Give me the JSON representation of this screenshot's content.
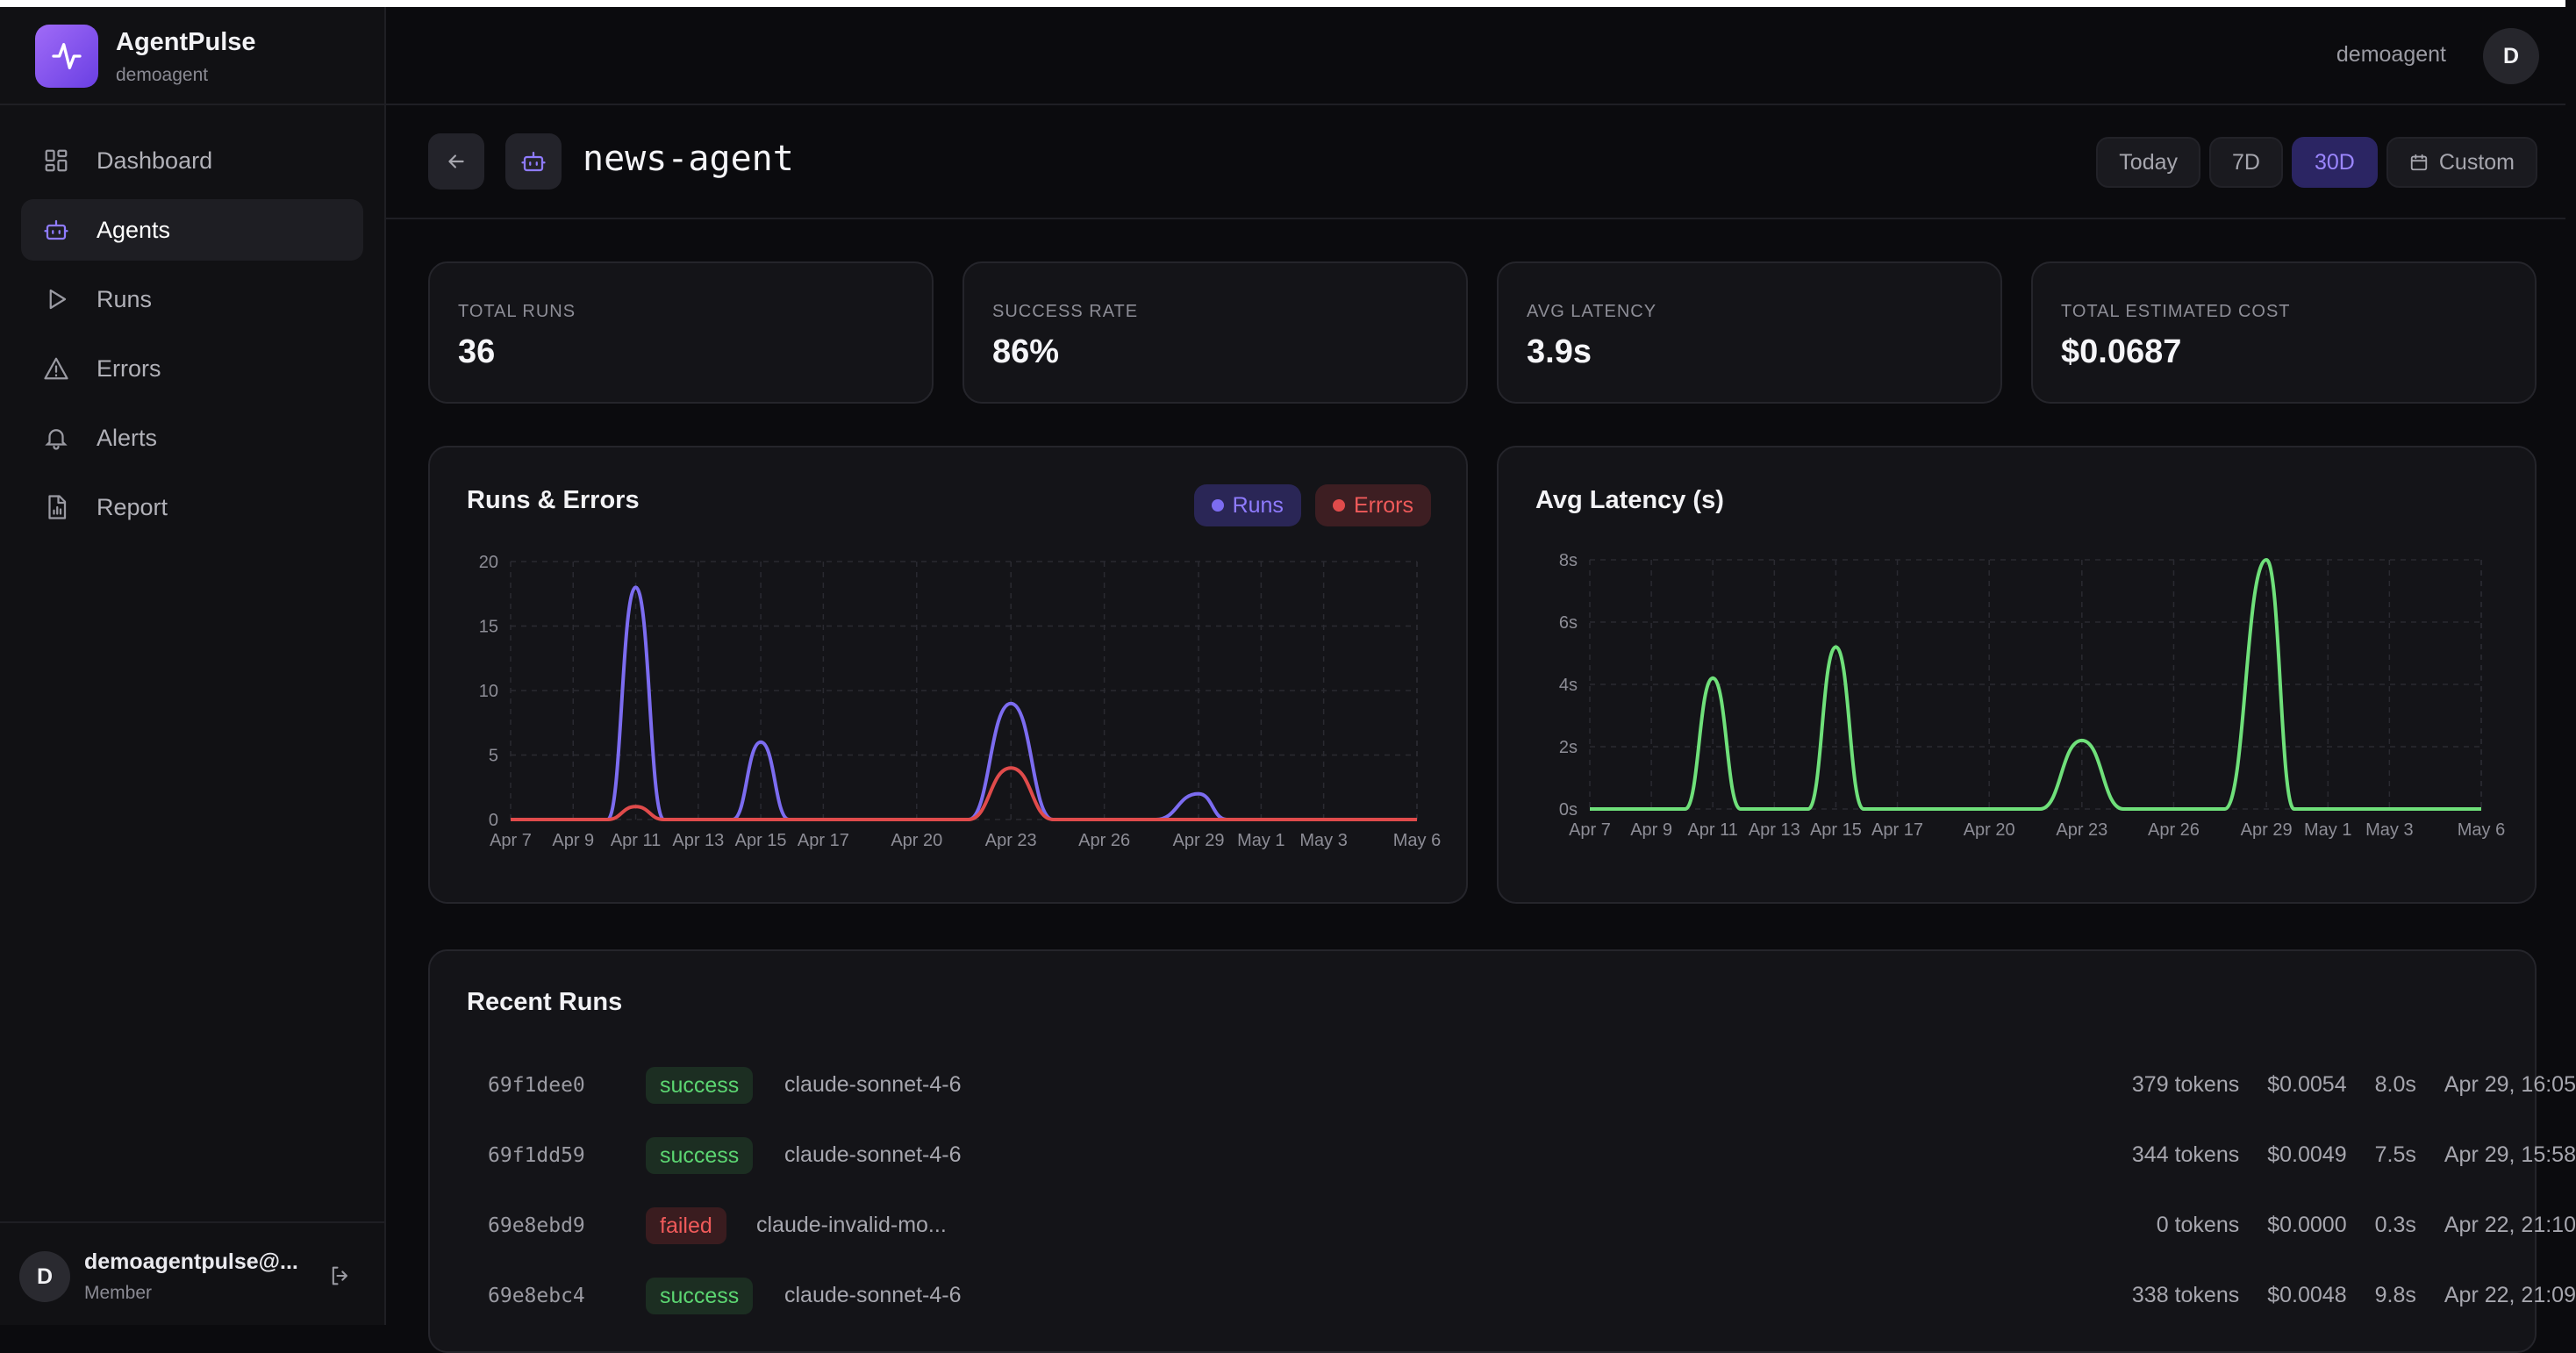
{
  "app": {
    "name": "AgentPulse",
    "workspace": "demoagent"
  },
  "sidebar": {
    "items": [
      {
        "label": "Dashboard",
        "icon": "dashboard-icon",
        "active": false
      },
      {
        "label": "Agents",
        "icon": "bot-icon",
        "active": true
      },
      {
        "label": "Runs",
        "icon": "play-icon",
        "active": false
      },
      {
        "label": "Errors",
        "icon": "warning-icon",
        "active": false
      },
      {
        "label": "Alerts",
        "icon": "bell-icon",
        "active": false
      },
      {
        "label": "Report",
        "icon": "report-icon",
        "active": false
      }
    ],
    "user": {
      "initial": "D",
      "name": "demoagentpulse@...",
      "role": "Member"
    }
  },
  "header": {
    "username": "demoagent",
    "initial": "D"
  },
  "agent": {
    "name": "news-agent"
  },
  "range": {
    "options": [
      "Today",
      "7D",
      "30D",
      "Custom"
    ],
    "selected": "30D"
  },
  "stats": [
    {
      "label": "TOTAL RUNS",
      "value": "36"
    },
    {
      "label": "SUCCESS RATE",
      "value": "86%"
    },
    {
      "label": "AVG LATENCY",
      "value": "3.9s"
    },
    {
      "label": "TOTAL ESTIMATED COST",
      "value": "$0.0687"
    }
  ],
  "colors": {
    "accent": "#8f7bff",
    "runs": "#7c6cf0",
    "errors": "#e04b4b",
    "latency": "#6fe07a"
  },
  "chart_data": [
    {
      "type": "area",
      "title": "Runs & Errors",
      "x": [
        "Apr 7",
        "Apr 9",
        "Apr 11",
        "Apr 13",
        "Apr 15",
        "Apr 17",
        "Apr 20",
        "Apr 23",
        "Apr 26",
        "Apr 29",
        "May 1",
        "May 3",
        "May 6"
      ],
      "ylim": [
        0,
        20
      ],
      "yticks": [
        0,
        5,
        10,
        15,
        20
      ],
      "series": [
        {
          "name": "Runs",
          "values": [
            0,
            0,
            18,
            0,
            6,
            0,
            0,
            9,
            0,
            2,
            0,
            0,
            0
          ]
        },
        {
          "name": "Errors",
          "values": [
            0,
            0,
            1,
            0,
            0,
            0,
            0,
            4,
            0,
            0,
            0,
            0,
            0
          ]
        }
      ],
      "grid": true,
      "legend": "top-right"
    },
    {
      "type": "line",
      "title": "Avg Latency (s)",
      "x": [
        "Apr 7",
        "Apr 9",
        "Apr 11",
        "Apr 13",
        "Apr 15",
        "Apr 17",
        "Apr 20",
        "Apr 23",
        "Apr 26",
        "Apr 29",
        "May 1",
        "May 3",
        "May 6"
      ],
      "ylim": [
        0,
        8
      ],
      "yticks": [
        "0s",
        "2s",
        "4s",
        "6s",
        "8s"
      ],
      "series": [
        {
          "values": [
            0,
            0,
            4.2,
            0,
            5.2,
            0,
            0,
            2.2,
            0,
            8.0,
            0,
            0,
            0
          ]
        }
      ],
      "grid": true
    }
  ],
  "recent_runs": {
    "title": "Recent Runs",
    "rows": [
      {
        "id": "69f1dee0",
        "status": "success",
        "model": "claude-sonnet-4-6",
        "tokens": "379 tokens",
        "cost": "$0.0054",
        "duration": "8.0s",
        "time": "Apr 29, 16:05"
      },
      {
        "id": "69f1dd59",
        "status": "success",
        "model": "claude-sonnet-4-6",
        "tokens": "344 tokens",
        "cost": "$0.0049",
        "duration": "7.5s",
        "time": "Apr 29, 15:58"
      },
      {
        "id": "69e8ebd9",
        "status": "failed",
        "model": "claude-invalid-mo...",
        "tokens": "0 tokens",
        "cost": "$0.0000",
        "duration": "0.3s",
        "time": "Apr 22, 21:10"
      },
      {
        "id": "69e8ebc4",
        "status": "success",
        "model": "claude-sonnet-4-6",
        "tokens": "338 tokens",
        "cost": "$0.0048",
        "duration": "9.8s",
        "time": "Apr 22, 21:09"
      }
    ]
  }
}
